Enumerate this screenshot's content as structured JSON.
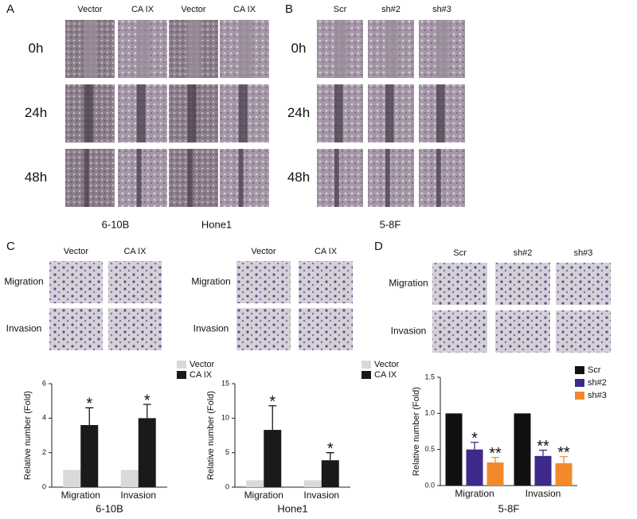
{
  "panel_labels": [
    "A",
    "B",
    "C",
    "D"
  ],
  "panel_a": {
    "columns": [
      "Vector",
      "CA IX",
      "Vector",
      "CA IX"
    ],
    "rows": [
      "0h",
      "24h",
      "48h"
    ],
    "groups": [
      "6-10B",
      "Hone1"
    ]
  },
  "panel_b": {
    "columns": [
      "Scr",
      "sh#2",
      "sh#3"
    ],
    "rows": [
      "0h",
      "24h",
      "48h"
    ],
    "groups": [
      "5-8F"
    ]
  },
  "panel_c": [
    {
      "columns": [
        "Vector",
        "CA IX"
      ],
      "rows": [
        "Migration",
        "Invasion"
      ]
    },
    {
      "columns": [
        "Vector",
        "CA IX"
      ],
      "rows": [
        "Migration",
        "Invasion"
      ]
    }
  ],
  "panel_d": {
    "columns": [
      "Scr",
      "sh#2",
      "sh#3"
    ],
    "rows": [
      "Migration",
      "Invasion"
    ]
  },
  "chart_data": [
    {
      "type": "bar",
      "ylabel": "Relative number (Fold)",
      "xlabel": "6-10B",
      "legend": "upper right",
      "categories": [
        "Migration",
        "Invasion"
      ],
      "ylim": [
        0,
        6
      ],
      "yticks": [
        0,
        2,
        4,
        6
      ],
      "series": [
        {
          "name": "Vector",
          "color": "#d9d9d9",
          "values": [
            1,
            1
          ]
        },
        {
          "name": "CA IX",
          "color": "#1a1a1a",
          "values": [
            3.6,
            4.0
          ],
          "errors": [
            1.0,
            0.8
          ],
          "significance": [
            "*",
            "*"
          ]
        }
      ]
    },
    {
      "type": "bar",
      "ylabel": "Relative number (Fold)",
      "xlabel": "Hone1",
      "legend": "upper right",
      "categories": [
        "Migration",
        "Invasion"
      ],
      "ylim": [
        0,
        15
      ],
      "yticks": [
        0,
        5,
        10,
        15
      ],
      "series": [
        {
          "name": "Vector",
          "color": "#d9d9d9",
          "values": [
            1,
            1
          ]
        },
        {
          "name": "CA IX",
          "color": "#1a1a1a",
          "values": [
            8.3,
            3.9
          ],
          "errors": [
            3.5,
            1.1
          ],
          "significance": [
            "*",
            "*"
          ]
        }
      ]
    },
    {
      "type": "bar",
      "ylabel": "Relative number (Fold)",
      "xlabel": "5-8F",
      "legend": "upper right",
      "categories": [
        "Migration",
        "Invasion"
      ],
      "ylim": [
        0,
        1.5
      ],
      "yticks": [
        {
          "value": 0,
          "label": "0.0"
        },
        0.5,
        {
          "value": 1,
          "label": "1.0"
        },
        1.5
      ],
      "series": [
        {
          "name": "Scr",
          "color": "#111111",
          "values": [
            1,
            1
          ]
        },
        {
          "name": "sh#2",
          "color": "#3d2a8a",
          "values": [
            0.5,
            0.41
          ],
          "errors": [
            0.1,
            0.08
          ],
          "significance": [
            "*",
            "**"
          ]
        },
        {
          "name": "sh#3",
          "color": "#f28a2b",
          "values": [
            0.32,
            0.31
          ],
          "errors": [
            0.07,
            0.09
          ],
          "significance": [
            "**",
            "**"
          ]
        }
      ]
    }
  ]
}
